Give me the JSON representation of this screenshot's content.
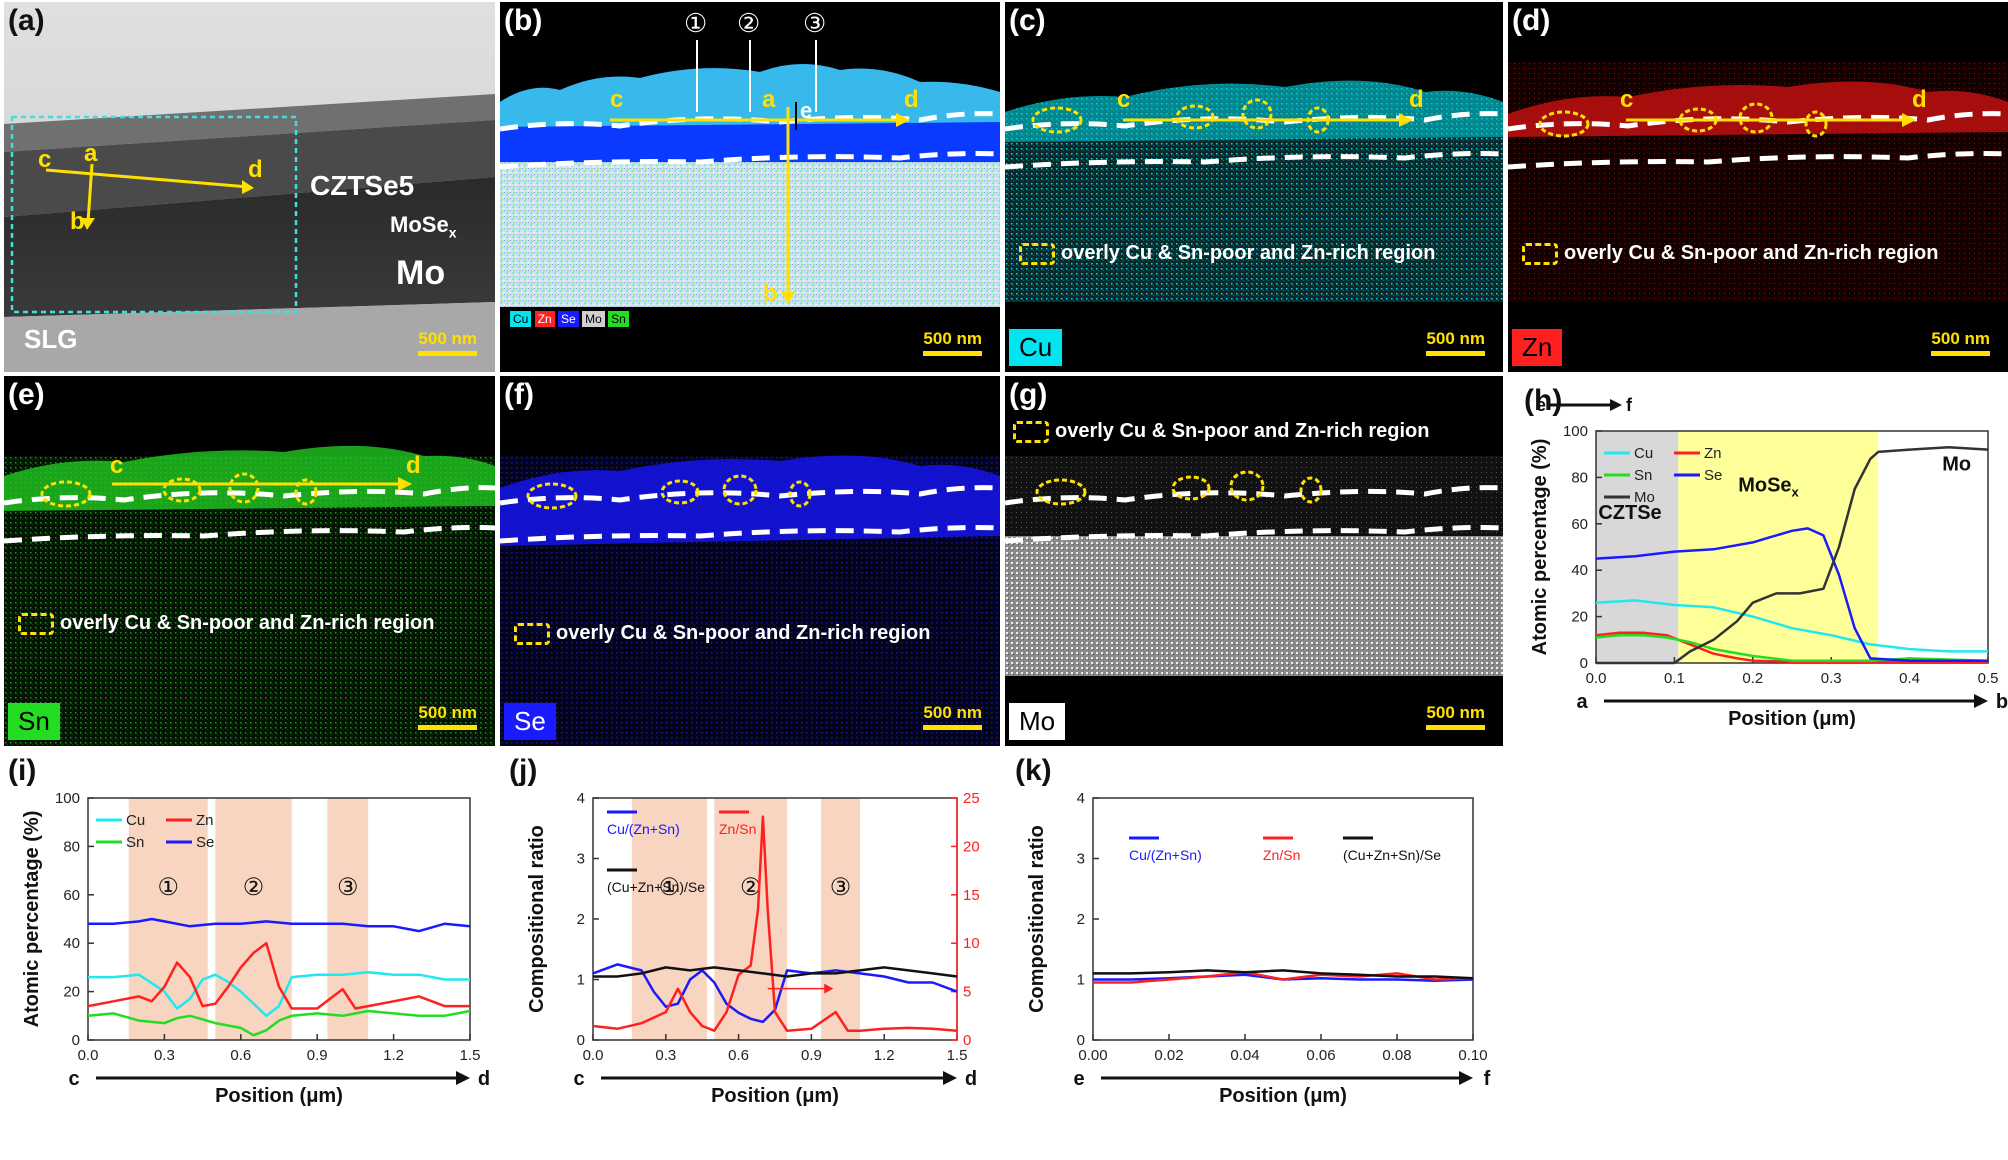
{
  "figure": {
    "panel_labels": {
      "a": "(a)",
      "b": "(b)",
      "c": "(c)",
      "d": "(d)",
      "e": "(e)",
      "f": "(f)",
      "g": "(g)",
      "h": "(h)",
      "i": "(i)",
      "j": "(j)",
      "k": "(k)"
    },
    "scale_bar": "500 nm",
    "region_note": "overly Cu & Sn-poor and Zn-rich region",
    "circled": [
      "①",
      "②",
      "③"
    ],
    "path_letters": {
      "a": "a",
      "b": "b",
      "c": "c",
      "d": "d",
      "e": "e",
      "f": "f"
    },
    "tem_labels": {
      "czts": "CZTSe5",
      "mose": "MoSe",
      "mose_sub": "x",
      "mo": "Mo",
      "slg": "SLG"
    },
    "element_tags": {
      "cu": "Cu",
      "zn": "Zn",
      "sn": "Sn",
      "se": "Se",
      "mo": "Mo"
    },
    "colors": {
      "cu": "#00e5f0",
      "zn": "#ff2020",
      "sn": "#22dd22",
      "se": "#1a1aff",
      "mo": "#d0d0d0",
      "highlight": "#ffe000"
    }
  },
  "chart_data": [
    {
      "id": "h",
      "type": "line",
      "title": "",
      "xlabel": "Position (μm)",
      "ylabel": "Atomic percentage (%)",
      "xlim": [
        0,
        0.5
      ],
      "ylim": [
        0,
        100
      ],
      "xticks": [
        "0.0",
        "0.1",
        "0.2",
        "0.3",
        "0.4",
        "0.5"
      ],
      "yticks": [
        "0",
        "20",
        "40",
        "60",
        "80",
        "100"
      ],
      "regions": [
        {
          "from": 0,
          "to": 0.105,
          "label": "CZTSe",
          "color": "#d8d8d8"
        },
        {
          "from": 0.105,
          "to": 0.36,
          "label": "MoSe",
          "label_sub": "x",
          "color": "#ffff99"
        },
        {
          "from": 0.36,
          "to": 0.5,
          "label": "Mo",
          "color": "#ffffff"
        }
      ],
      "ends": [
        "a",
        "b"
      ],
      "top_arrow": [
        "e",
        "f"
      ],
      "legend": [
        "Cu",
        "Zn",
        "Sn",
        "Se",
        "Mo"
      ],
      "series": [
        {
          "name": "Cu",
          "color": "#20e8f0",
          "x": [
            0,
            0.05,
            0.1,
            0.15,
            0.2,
            0.25,
            0.3,
            0.35,
            0.4,
            0.45,
            0.5
          ],
          "y": [
            26,
            27,
            25,
            24,
            20,
            15,
            12,
            8,
            6,
            5,
            5
          ]
        },
        {
          "name": "Zn",
          "color": "#ff2020",
          "x": [
            0,
            0.03,
            0.06,
            0.09,
            0.12,
            0.15,
            0.18,
            0.2,
            0.25,
            0.3,
            0.35,
            0.4,
            0.5
          ],
          "y": [
            12,
            13,
            13,
            12,
            8,
            4,
            2,
            1,
            0.5,
            0.5,
            0.5,
            0.5,
            0.5
          ]
        },
        {
          "name": "Sn",
          "color": "#22dd22",
          "x": [
            0,
            0.03,
            0.06,
            0.09,
            0.12,
            0.15,
            0.2,
            0.25,
            0.3,
            0.35,
            0.4,
            0.5
          ],
          "y": [
            11,
            12,
            12,
            11,
            9,
            6,
            3,
            1,
            1,
            1,
            2,
            1
          ]
        },
        {
          "name": "Se",
          "color": "#1a1aff",
          "x": [
            0,
            0.05,
            0.1,
            0.15,
            0.2,
            0.22,
            0.25,
            0.27,
            0.29,
            0.31,
            0.33,
            0.35,
            0.4,
            0.5
          ],
          "y": [
            45,
            46,
            48,
            49,
            52,
            54,
            57,
            58,
            55,
            38,
            15,
            2,
            1,
            1
          ]
        },
        {
          "name": "Mo",
          "color": "#333333",
          "x": [
            0,
            0.1,
            0.12,
            0.15,
            0.18,
            0.2,
            0.23,
            0.26,
            0.29,
            0.31,
            0.33,
            0.35,
            0.36,
            0.4,
            0.45,
            0.5
          ],
          "y": [
            0,
            0,
            5,
            10,
            18,
            26,
            30,
            30,
            32,
            50,
            75,
            88,
            91,
            92,
            93,
            92
          ]
        }
      ]
    },
    {
      "id": "i",
      "type": "line",
      "title": "",
      "xlabel": "Position (μm)",
      "ylabel": "Atomic percentage (%)",
      "xlim": [
        0,
        1.5
      ],
      "ylim": [
        0,
        100
      ],
      "xticks": [
        "0.0",
        "0.3",
        "0.6",
        "0.9",
        "1.2",
        "1.5"
      ],
      "yticks": [
        "0",
        "20",
        "40",
        "60",
        "80",
        "100"
      ],
      "regions": [
        {
          "from": 0.16,
          "to": 0.47,
          "label": "①",
          "color": "#f7d5c0"
        },
        {
          "from": 0.5,
          "to": 0.8,
          "label": "②",
          "color": "#f7d5c0"
        },
        {
          "from": 0.94,
          "to": 1.1,
          "label": "③",
          "color": "#f7d5c0"
        }
      ],
      "ends": [
        "c",
        "d"
      ],
      "legend": [
        "Cu",
        "Zn",
        "Sn",
        "Se"
      ],
      "series": [
        {
          "name": "Cu",
          "color": "#20e8f0",
          "x": [
            0,
            0.1,
            0.2,
            0.3,
            0.35,
            0.4,
            0.45,
            0.5,
            0.55,
            0.6,
            0.7,
            0.75,
            0.8,
            0.9,
            1,
            1.1,
            1.2,
            1.3,
            1.4,
            1.5
          ],
          "y": [
            26,
            26,
            27,
            20,
            13,
            17,
            25,
            27,
            24,
            20,
            10,
            14,
            26,
            27,
            27,
            28,
            27,
            27,
            25,
            25
          ]
        },
        {
          "name": "Zn",
          "color": "#ff2020",
          "x": [
            0,
            0.1,
            0.2,
            0.25,
            0.3,
            0.35,
            0.4,
            0.45,
            0.5,
            0.55,
            0.6,
            0.65,
            0.7,
            0.75,
            0.8,
            0.9,
            0.95,
            1,
            1.05,
            1.1,
            1.2,
            1.3,
            1.4,
            1.5
          ],
          "y": [
            14,
            16,
            18,
            16,
            22,
            32,
            26,
            14,
            15,
            22,
            30,
            36,
            40,
            22,
            13,
            13,
            17,
            21,
            13,
            14,
            16,
            18,
            14,
            14
          ]
        },
        {
          "name": "Sn",
          "color": "#22dd22",
          "x": [
            0,
            0.1,
            0.2,
            0.3,
            0.35,
            0.4,
            0.5,
            0.6,
            0.65,
            0.7,
            0.75,
            0.8,
            0.9,
            1,
            1.1,
            1.2,
            1.3,
            1.4,
            1.5
          ],
          "y": [
            10,
            11,
            8,
            7,
            9,
            10,
            7,
            5,
            2,
            4,
            8,
            10,
            11,
            10,
            12,
            11,
            10,
            10,
            12
          ]
        },
        {
          "name": "Se",
          "color": "#1a1aff",
          "x": [
            0,
            0.1,
            0.2,
            0.25,
            0.3,
            0.4,
            0.5,
            0.6,
            0.7,
            0.8,
            0.9,
            1,
            1.1,
            1.2,
            1.3,
            1.4,
            1.5
          ],
          "y": [
            48,
            48,
            49,
            50,
            49,
            47,
            48,
            48,
            49,
            48,
            48,
            48,
            47,
            47,
            45,
            48,
            47
          ]
        }
      ]
    },
    {
      "id": "j",
      "type": "line",
      "title": "",
      "xlabel": "Position (μm)",
      "ylabel": "Compositional ratio",
      "xlim": [
        0,
        1.5
      ],
      "ylim": [
        0,
        4
      ],
      "y2lim": [
        0,
        26
      ],
      "xticks": [
        "0.0",
        "0.3",
        "0.6",
        "0.9",
        "1.2",
        "1.5"
      ],
      "yticks": [
        "0",
        "1",
        "2",
        "3",
        "4"
      ],
      "y2ticks": [
        "0",
        "5",
        "10",
        "15",
        "20",
        "25"
      ],
      "regions": [
        {
          "from": 0.16,
          "to": 0.47,
          "label": "①",
          "color": "#f7d5c0"
        },
        {
          "from": 0.5,
          "to": 0.8,
          "label": "②",
          "color": "#f7d5c0"
        },
        {
          "from": 0.94,
          "to": 1.1,
          "label": "③",
          "color": "#f7d5c0"
        }
      ],
      "ends": [
        "c",
        "d"
      ],
      "legend": [
        "Cu/(Zn+Sn)",
        "Zn/Sn",
        "(Cu+Zn+Sn)/Se"
      ],
      "series": [
        {
          "name": "Cu/(Zn+Sn)",
          "color": "#1a1aff",
          "axis": "left",
          "x": [
            0,
            0.1,
            0.2,
            0.25,
            0.3,
            0.35,
            0.4,
            0.45,
            0.5,
            0.55,
            0.6,
            0.65,
            0.7,
            0.75,
            0.8,
            0.9,
            1,
            1.1,
            1.2,
            1.3,
            1.4,
            1.5
          ],
          "y": [
            1.1,
            1.25,
            1.15,
            0.8,
            0.55,
            0.6,
            1.0,
            1.15,
            0.95,
            0.6,
            0.45,
            0.35,
            0.3,
            0.5,
            1.15,
            1.1,
            1.15,
            1.1,
            1.05,
            0.95,
            0.95,
            0.8
          ]
        },
        {
          "name": "Zn/Sn",
          "color": "#ff2020",
          "axis": "right",
          "x": [
            0,
            0.1,
            0.2,
            0.3,
            0.35,
            0.4,
            0.45,
            0.5,
            0.55,
            0.6,
            0.65,
            0.68,
            0.7,
            0.72,
            0.75,
            0.8,
            0.9,
            1,
            1.05,
            1.1,
            1.2,
            1.3,
            1.4,
            1.5
          ],
          "y": [
            1.5,
            1.2,
            1.8,
            3,
            5.5,
            3,
            1.5,
            1,
            3,
            7,
            8,
            14,
            24,
            14,
            3,
            1,
            1.2,
            3,
            1,
            1,
            1.2,
            1.3,
            1.2,
            1
          ]
        },
        {
          "name": "(Cu+Zn+Sn)/Se",
          "color": "#111111",
          "axis": "left",
          "x": [
            0,
            0.1,
            0.2,
            0.3,
            0.4,
            0.5,
            0.6,
            0.7,
            0.8,
            0.9,
            1,
            1.1,
            1.2,
            1.3,
            1.4,
            1.5
          ],
          "y": [
            1.05,
            1.05,
            1.1,
            1.2,
            1.15,
            1.2,
            1.15,
            1.1,
            1.05,
            1.1,
            1.1,
            1.15,
            1.2,
            1.15,
            1.1,
            1.05
          ]
        }
      ]
    },
    {
      "id": "k",
      "type": "line",
      "title": "",
      "xlabel": "Position (μm)",
      "ylabel": "Compositional ratio",
      "xlim": [
        0,
        0.1
      ],
      "ylim": [
        0,
        4
      ],
      "xticks": [
        "0.00",
        "0.02",
        "0.04",
        "0.06",
        "0.08",
        "0.10"
      ],
      "yticks": [
        "0",
        "1",
        "2",
        "3",
        "4"
      ],
      "regions": [],
      "ends": [
        "e",
        "f"
      ],
      "legend": [
        "Cu/(Zn+Sn)",
        "Zn/Sn",
        "(Cu+Zn+Sn)/Se"
      ],
      "series": [
        {
          "name": "Cu/(Zn+Sn)",
          "color": "#1a1aff",
          "x": [
            0,
            0.01,
            0.02,
            0.03,
            0.04,
            0.05,
            0.06,
            0.07,
            0.08,
            0.09,
            0.1
          ],
          "y": [
            1.0,
            1.0,
            1.02,
            1.05,
            1.08,
            1.0,
            1.02,
            1.0,
            1.0,
            0.98,
            1.0
          ]
        },
        {
          "name": "Zn/Sn",
          "color": "#ff2020",
          "x": [
            0,
            0.01,
            0.02,
            0.03,
            0.04,
            0.05,
            0.06,
            0.07,
            0.08,
            0.09,
            0.1
          ],
          "y": [
            0.95,
            0.95,
            1.0,
            1.05,
            1.12,
            1.0,
            1.08,
            1.05,
            1.1,
            1.0,
            1.02
          ]
        },
        {
          "name": "(Cu+Zn+Sn)/Se",
          "color": "#111111",
          "x": [
            0,
            0.01,
            0.02,
            0.03,
            0.04,
            0.05,
            0.06,
            0.07,
            0.08,
            0.09,
            0.1
          ],
          "y": [
            1.1,
            1.1,
            1.12,
            1.15,
            1.12,
            1.15,
            1.1,
            1.08,
            1.05,
            1.05,
            1.02
          ]
        }
      ]
    }
  ]
}
